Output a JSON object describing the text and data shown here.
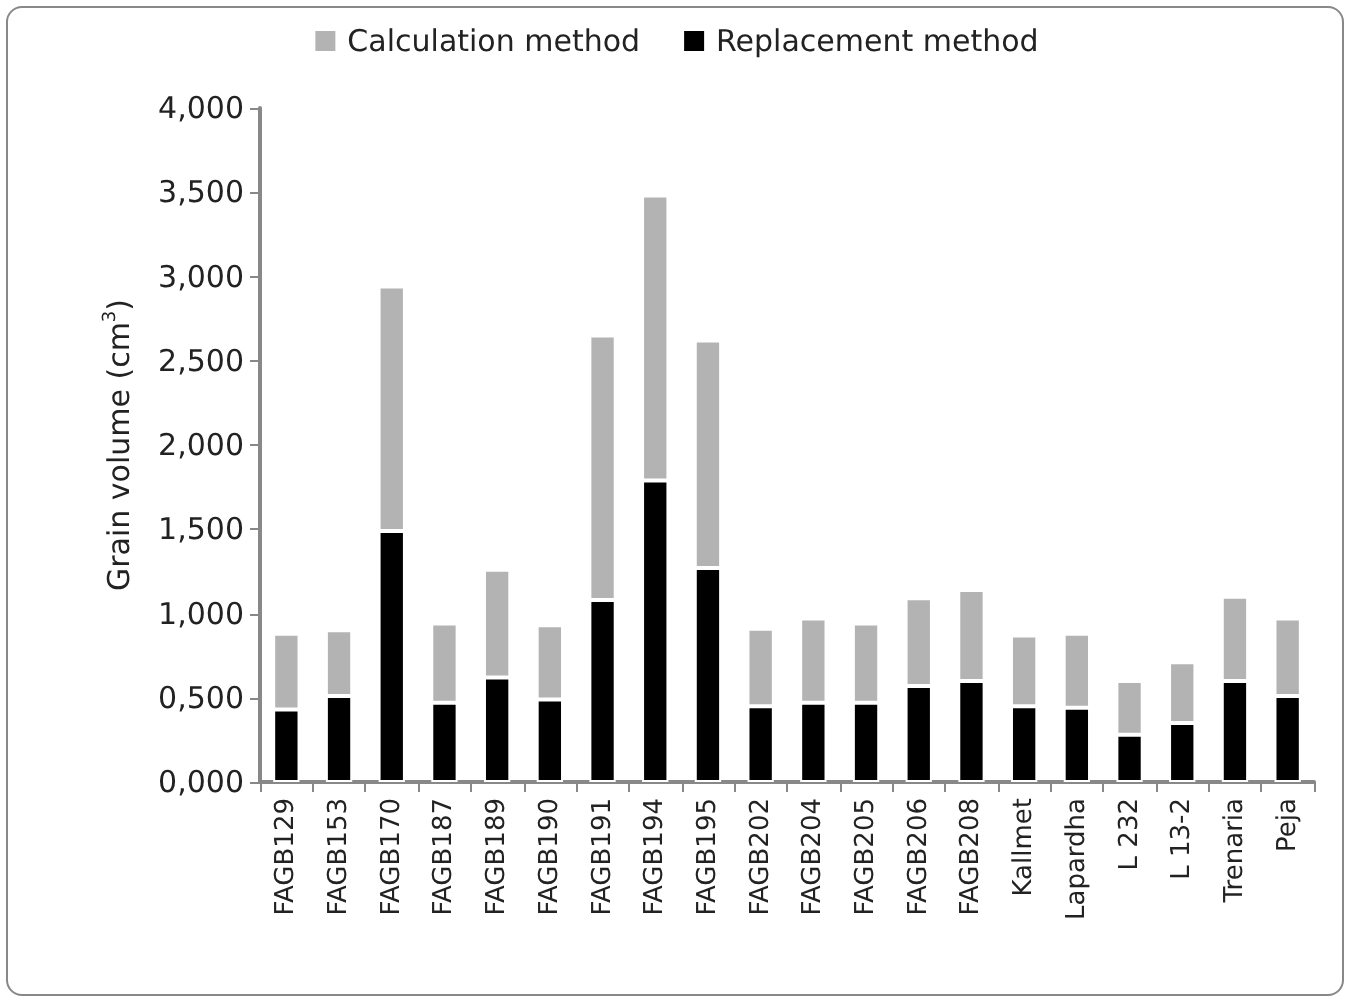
{
  "chart_data": {
    "type": "bar",
    "ylabel": "Grain volume (cm$^{3}$)",
    "stacked": true,
    "legend": "top",
    "grid": false,
    "categories": [
      "FAGB129",
      "FAGB153",
      "FAGB170",
      "FAGB187",
      "FAGB189",
      "FAGB190",
      "FAGB191",
      "FAGB194",
      "FAGB195",
      "FAGB202",
      "FAGB204",
      "FAGB205",
      "FAGB206",
      "FAGB208",
      "Kallmet",
      "Lapardha",
      "L 232",
      "L 13-2",
      "Trenaria",
      "Peja"
    ],
    "series": [
      {
        "name": "Replacement method",
        "color": "#000000",
        "values": [
          0.43,
          0.51,
          1.49,
          0.47,
          0.62,
          0.49,
          1.08,
          1.79,
          1.27,
          0.45,
          0.47,
          0.47,
          0.57,
          0.6,
          0.45,
          0.44,
          0.28,
          0.35,
          0.6,
          0.51
        ]
      },
      {
        "name": "Calculation method",
        "color": "#b3b3b3",
        "values": [
          0.45,
          0.39,
          1.45,
          0.47,
          0.64,
          0.44,
          1.57,
          1.69,
          1.35,
          0.46,
          0.5,
          0.47,
          0.52,
          0.54,
          0.42,
          0.44,
          0.32,
          0.36,
          0.5,
          0.46
        ]
      }
    ],
    "ylim": [
      0,
      4
    ],
    "yticks": [
      {
        "value": 0,
        "label": "0,000"
      },
      {
        "value": 0.5,
        "label": "0,500"
      },
      {
        "value": 1,
        "label": "1,000"
      },
      {
        "value": 1.5,
        "label": "1,500"
      },
      {
        "value": 2,
        "label": "2,000"
      },
      {
        "value": 2.5,
        "label": "2,500"
      },
      {
        "value": 3,
        "label": "3,000"
      },
      {
        "value": 3.5,
        "label": "3,500"
      },
      {
        "value": 4,
        "label": "4,000"
      }
    ]
  }
}
